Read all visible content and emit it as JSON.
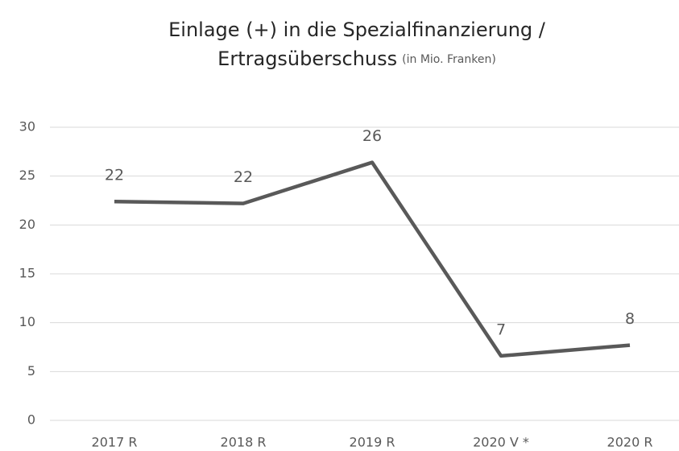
{
  "chart_data": {
    "type": "line",
    "title": [
      "Einlage (+) in die Spezialfinanzierung /",
      "Ertragsüberschuss"
    ],
    "title_note": "(in Mio. Franken)",
    "categories": [
      "2017 R",
      "2018 R",
      "2019 R",
      "2020 V *",
      "2020 R"
    ],
    "series": [
      {
        "name": "Einlage",
        "color": "#595959",
        "values": [
          22.4,
          22.2,
          26.4,
          6.6,
          7.7
        ],
        "value_labels": [
          "22",
          "22",
          "26",
          "7",
          "8"
        ]
      }
    ],
    "ylim": [
      0,
      30
    ],
    "yticks": [
      0,
      5,
      10,
      15,
      20,
      25,
      30
    ],
    "grid": true
  }
}
